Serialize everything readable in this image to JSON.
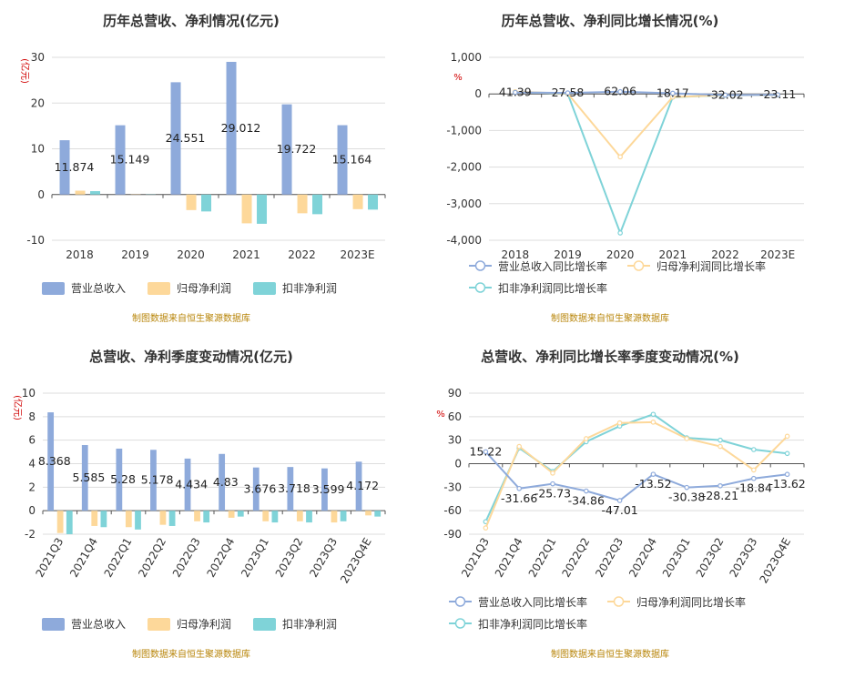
{
  "colors": {
    "revenue": "#8eaadb",
    "parent_np": "#fdd89a",
    "deducted_np": "#7fd3d8",
    "source_text": "#b8860b",
    "unit_text": "#d00000"
  },
  "chart_data": [
    {
      "type": "bar",
      "title": "历年总营收、净利情况(亿元)",
      "unit": "(亿元)",
      "categories": [
        "2018",
        "2019",
        "2020",
        "2021",
        "2022",
        "2023E"
      ],
      "series": [
        {
          "name": "营业总收入",
          "values": [
            11.874,
            15.149,
            24.551,
            29.012,
            19.722,
            15.164
          ],
          "labels": [
            "11.874",
            "15.149",
            "24.551",
            "29.012",
            "19.722",
            "15.164"
          ]
        },
        {
          "name": "归母净利润",
          "values": [
            0.84,
            0.06,
            -3.4,
            -6.3,
            -4.1,
            -3.2
          ]
        },
        {
          "name": "扣非净利润",
          "values": [
            0.74,
            0.05,
            -3.7,
            -6.4,
            -4.3,
            -3.3
          ]
        }
      ],
      "ylim": [
        -10,
        30
      ],
      "yticks": [
        "30",
        "20",
        "10",
        "0",
        "-10"
      ],
      "legend": [
        "营业总收入",
        "归母净利润",
        "扣非净利润"
      ],
      "source": "制图数据来自恒生聚源数据库"
    },
    {
      "type": "line",
      "title": "历年总营收、净利同比增长情况(%)",
      "unit": "%",
      "categories": [
        "2018",
        "2019",
        "2020",
        "2021",
        "2022",
        "2023E"
      ],
      "series": [
        {
          "name": "营业总收入同比增长率",
          "values": [
            41.39,
            27.58,
            62.06,
            18.17,
            -32.02,
            -23.11
          ],
          "labels": [
            "41.39",
            "27.58",
            "62.06",
            "18.17",
            "-32.02",
            "-23.11"
          ]
        },
        {
          "name": "归母净利润同比增长率",
          "values": [
            60,
            10,
            -1720,
            -85,
            -30,
            -25
          ]
        },
        {
          "name": "扣非净利润同比增长率",
          "values": [
            55,
            5,
            -3800,
            -90,
            -35,
            -28
          ]
        }
      ],
      "ylim": [
        -4000,
        1000
      ],
      "yticks": [
        "1,000",
        "0",
        "-1,000",
        "-2,000",
        "-3,000",
        "-4,000"
      ],
      "legend": [
        "营业总收入同比增长率",
        "归母净利润同比增长率",
        "扣非净利润同比增长率"
      ],
      "source": "制图数据来自恒生聚源数据库"
    },
    {
      "type": "bar",
      "title": "总营收、净利季度变动情况(亿元)",
      "unit": "(亿元)",
      "categories": [
        "2021Q3",
        "2021Q4",
        "2022Q1",
        "2022Q2",
        "2022Q3",
        "2022Q4",
        "2023Q1",
        "2023Q2",
        "2023Q3",
        "2023Q4E"
      ],
      "series": [
        {
          "name": "营业总收入",
          "values": [
            8.368,
            5.585,
            5.28,
            5.178,
            4.434,
            4.83,
            3.676,
            3.718,
            3.599,
            4.172
          ],
          "labels": [
            "8.368",
            "5.585",
            "5.28",
            "5.178",
            "4.434",
            "4.83",
            "3.676",
            "3.718",
            "3.599",
            "4.172"
          ]
        },
        {
          "name": "归母净利润",
          "values": [
            -1.9,
            -1.3,
            -1.4,
            -1.2,
            -0.9,
            -0.6,
            -0.9,
            -0.9,
            -1.0,
            -0.4
          ]
        },
        {
          "name": "扣非净利润",
          "values": [
            -2.0,
            -1.4,
            -1.6,
            -1.3,
            -1.0,
            -0.5,
            -1.0,
            -1.0,
            -0.9,
            -0.5
          ]
        }
      ],
      "ylim": [
        -2,
        10
      ],
      "yticks": [
        "10",
        "8",
        "6",
        "4",
        "2",
        "0",
        "-2"
      ],
      "legend": [
        "营业总收入",
        "归母净利润",
        "扣非净利润"
      ],
      "source": "制图数据来自恒生聚源数据库"
    },
    {
      "type": "line",
      "title": "总营收、净利同比增长率季度变动情况(%)",
      "unit": "%",
      "categories": [
        "2021Q3",
        "2021Q4",
        "2022Q1",
        "2022Q2",
        "2022Q3",
        "2022Q4",
        "2023Q1",
        "2023Q2",
        "2023Q3",
        "2023Q4E"
      ],
      "series": [
        {
          "name": "营业总收入同比增长率",
          "values": [
            15.22,
            -31.66,
            -25.73,
            -34.86,
            -47.01,
            -13.52,
            -30.38,
            -28.21,
            -18.84,
            -13.62
          ],
          "labels": [
            "15.22",
            "-31.66",
            "-25.73",
            "-34.86",
            "-47.01",
            "-13.52",
            "-30.38",
            "-28.21",
            "-18.84",
            "-13.62"
          ]
        },
        {
          "name": "归母净利润同比增长率",
          "values": [
            -82,
            22,
            -12,
            32,
            52,
            53,
            32,
            22,
            -8,
            35
          ]
        },
        {
          "name": "扣非净利润同比增长率",
          "values": [
            -74,
            20,
            -10,
            28,
            48,
            63,
            33,
            30,
            18,
            13
          ]
        }
      ],
      "ylim": [
        -90,
        90
      ],
      "yticks": [
        "90",
        "60",
        "30",
        "0",
        "-30",
        "-60",
        "-90"
      ],
      "legend": [
        "营业总收入同比增长率",
        "归母净利润同比增长率",
        "扣非净利润同比增长率"
      ],
      "source": "制图数据来自恒生聚源数据库"
    }
  ]
}
